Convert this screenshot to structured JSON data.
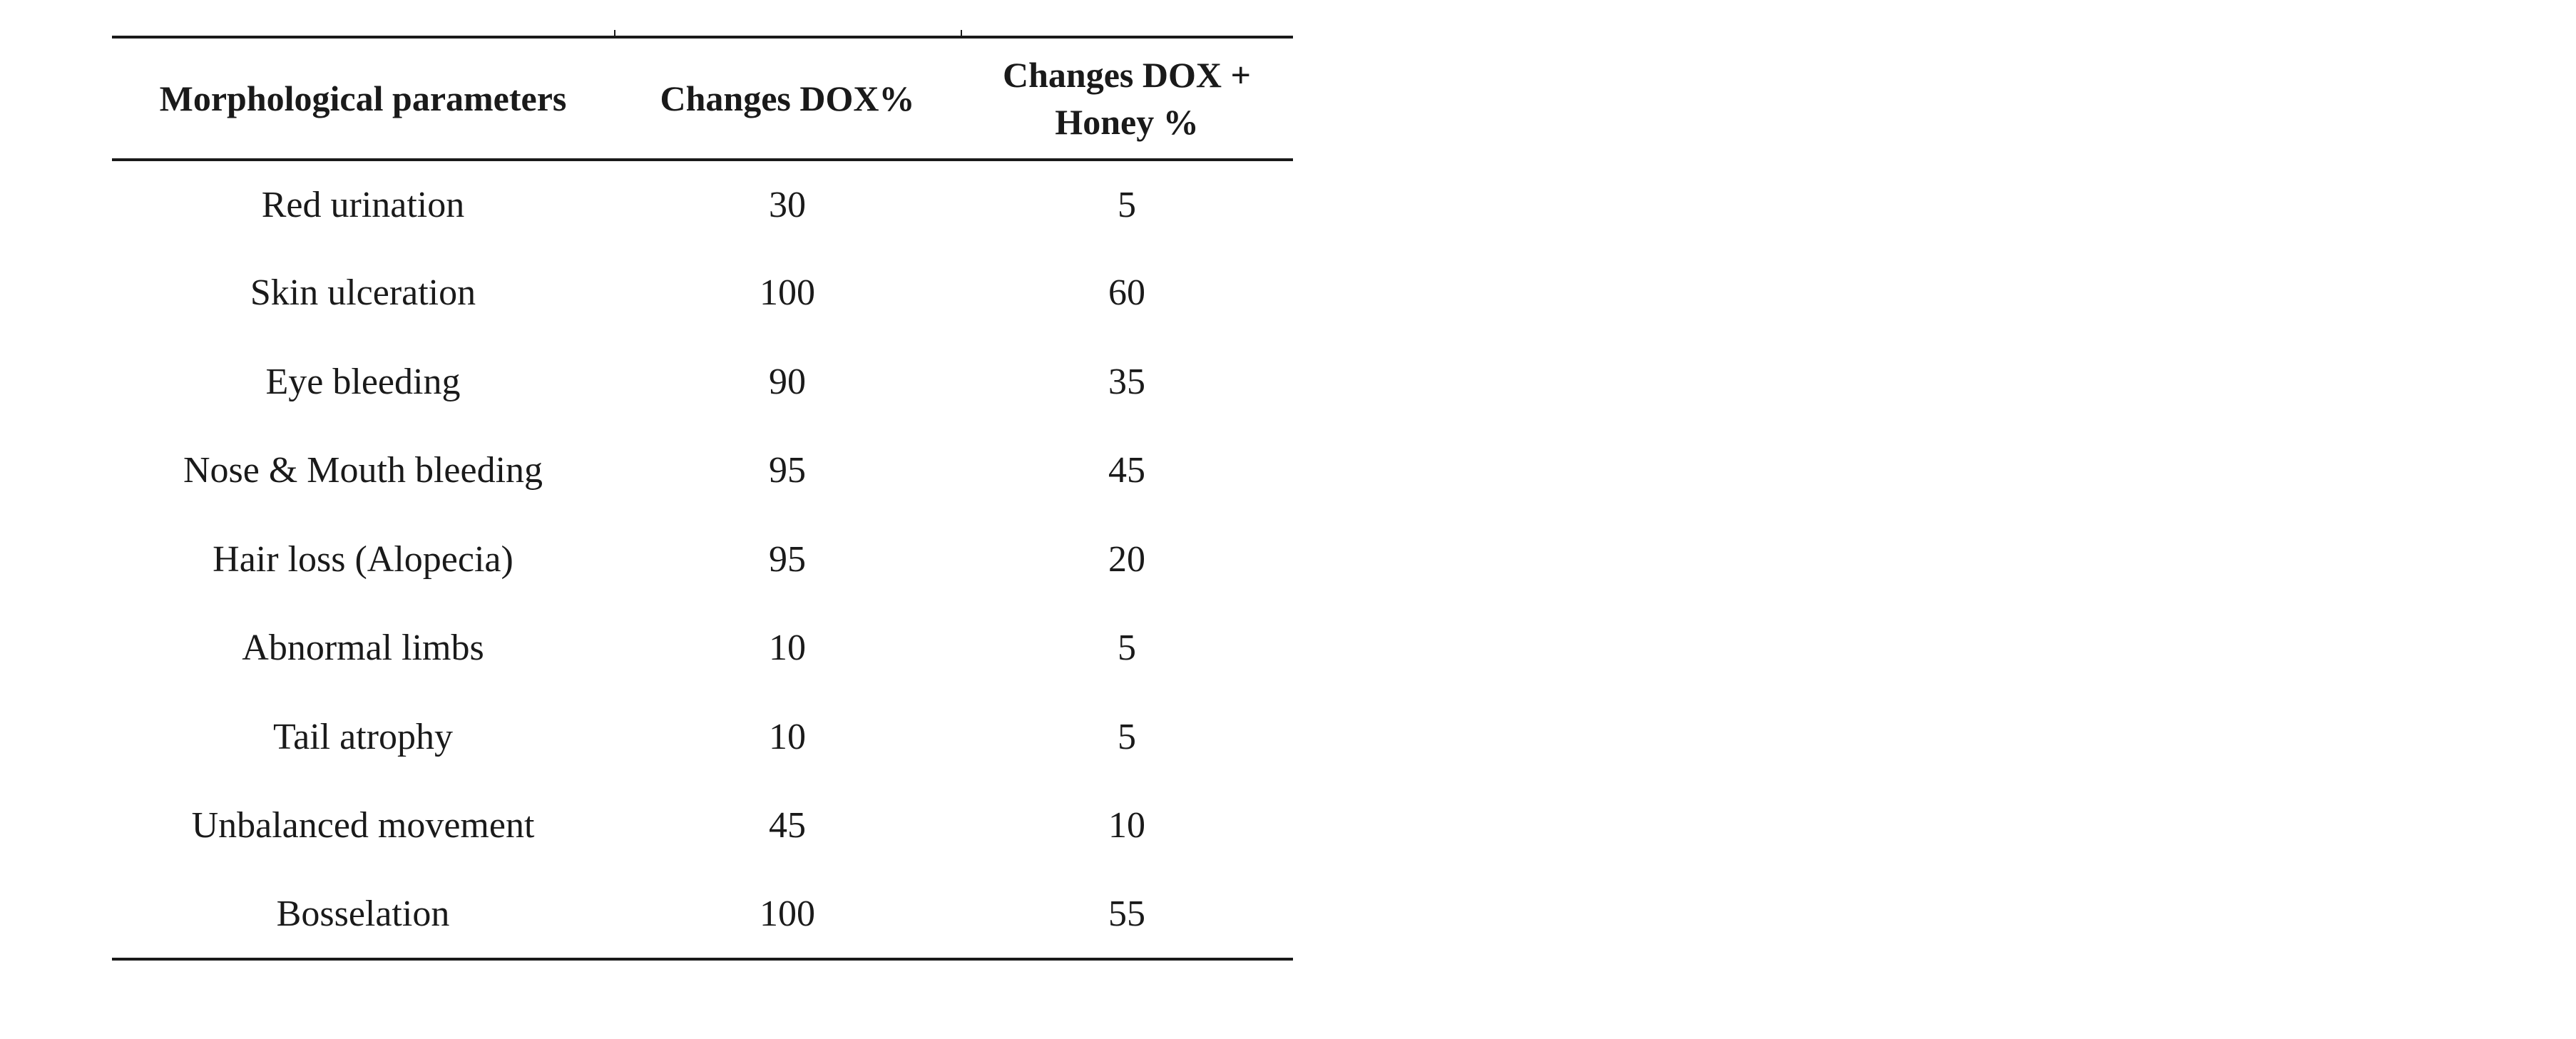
{
  "table": {
    "headers": [
      "Morphological parameters",
      "Changes DOX%",
      "Changes DOX + Honey %"
    ],
    "rows": [
      {
        "parameter": "Red urination",
        "dox": "30",
        "dox_honey": "5"
      },
      {
        "parameter": "Skin ulceration",
        "dox": "100",
        "dox_honey": "60"
      },
      {
        "parameter": "Eye bleeding",
        "dox": "90",
        "dox_honey": "35"
      },
      {
        "parameter": "Nose & Mouth bleeding",
        "dox": "95",
        "dox_honey": "45"
      },
      {
        "parameter": "Hair loss (Alopecia)",
        "dox": "95",
        "dox_honey": "20"
      },
      {
        "parameter": "Abnormal limbs",
        "dox": "10",
        "dox_honey": "5"
      },
      {
        "parameter": "Tail atrophy",
        "dox": "10",
        "dox_honey": "5"
      },
      {
        "parameter": "Unbalanced movement",
        "dox": "45",
        "dox_honey": "10"
      },
      {
        "parameter": "Bosselation",
        "dox": "100",
        "dox_honey": "55"
      }
    ]
  }
}
